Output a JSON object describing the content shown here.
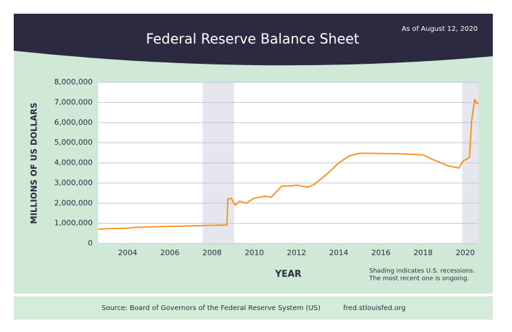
{
  "chart_data": {
    "type": "line",
    "title": "Federal Reserve Balance Sheet",
    "subtitle": "As of August 12, 2020",
    "y_label": "MILLIONS OF US DOLLARS",
    "x_label": "YEAR",
    "note": [
      "Shading indicates U.S. recessions.",
      "The most recent one is ongoing."
    ],
    "source": "Source: Board of Governors of the Federal Reserve System (US)",
    "source_url": "fred.stlouisfed.org",
    "color": "#f7931e",
    "x": [
      2002.6,
      2004,
      2004.3,
      2006,
      2007.6,
      2008.7,
      2008.75,
      2008.9,
      2009.1,
      2009.3,
      2009.6,
      2010,
      2010.5,
      2010.8,
      2011.3,
      2011.7,
      2012,
      2012.5,
      2012.8,
      2013.5,
      2014,
      2014.5,
      2015,
      2016,
      2017,
      2018,
      2018.5,
      2019.2,
      2019.7,
      2019.9,
      2020.1,
      2020.2,
      2020.3,
      2020.45,
      2020.55,
      2020.62
    ],
    "values": [
      720000,
      760000,
      800000,
      850000,
      890000,
      920000,
      2200000,
      2250000,
      1900000,
      2100000,
      2000000,
      2250000,
      2350000,
      2300000,
      2850000,
      2850000,
      2900000,
      2800000,
      2900000,
      3500000,
      4000000,
      4350000,
      4480000,
      4470000,
      4450000,
      4400000,
      4150000,
      3850000,
      3750000,
      4100000,
      4200000,
      4300000,
      6100000,
      7150000,
      6950000,
      6950000
    ],
    "recessions": [
      [
        2007.55,
        2009.05
      ],
      [
        2019.85,
        2020.62
      ]
    ],
    "xlim": [
      2002.6,
      2020.62
    ],
    "xticks": [
      2004,
      2006,
      2008,
      2010,
      2012,
      2014,
      2016,
      2018,
      2020
    ],
    "ylim": [
      0,
      8000000
    ],
    "yticks": [
      0,
      {
        "value": 1000000,
        "label": "1,000,000"
      },
      {
        "value": 2000000,
        "label": "2,000,000"
      },
      {
        "value": 3000000,
        "label": "3,000,000"
      },
      {
        "value": 4000000,
        "label": "4,000,000"
      },
      {
        "value": 5000000,
        "label": "5,000,000"
      },
      {
        "value": 6000000,
        "label": "6,000,000"
      },
      {
        "value": 7000000,
        "label": "7,000,000"
      },
      {
        "value": 8000000,
        "label": "8,000,000"
      }
    ],
    "grid": true
  }
}
